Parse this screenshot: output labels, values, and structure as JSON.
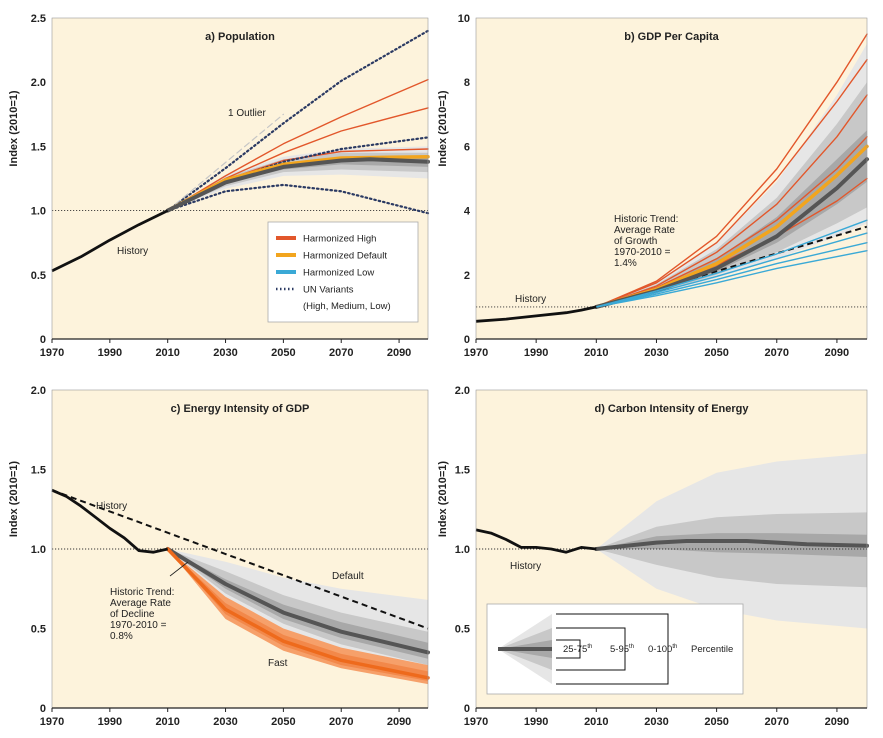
{
  "colors": {
    "panel_bg": "#fdf3dc",
    "high": "#e2572b",
    "default": "#f2a51e",
    "low": "#3aa9d6",
    "un": "#2b3a63",
    "history": "#111111",
    "median": "#555555",
    "band_outer": "#e6e6e6",
    "band_mid": "#c8c8c8",
    "band_inner": "#a8a8a8",
    "fast_band": "#f6a06a",
    "fast_line": "#ee6a1c"
  },
  "chart_data": [
    {
      "type": "line",
      "panel": "a",
      "title": "a) Population",
      "ylabel": "Index (2010=1)",
      "xlim": [
        1970,
        2100
      ],
      "ylim": [
        0,
        2.5
      ],
      "x_ticks": [
        "1970",
        "1990",
        "2010",
        "2030",
        "2050",
        "2070",
        "2090"
      ],
      "y_ticks": [
        "0",
        "0.5",
        "1.0",
        "1.5",
        "2.0",
        "2.5"
      ],
      "reference_line": 1.0,
      "history": {
        "label": "History",
        "x": [
          1970,
          1980,
          1990,
          2000,
          2010
        ],
        "y": [
          0.53,
          0.64,
          0.77,
          0.89,
          1.0
        ]
      },
      "annotations": [
        {
          "text": "1 Outlier",
          "x": 2032,
          "y": 1.72
        }
      ],
      "legend": [
        "Harmonized High",
        "Harmonized Default",
        "Harmonized Low",
        "UN Variants",
        "(High, Medium, Low)"
      ],
      "series": [
        {
          "name": "Harmonized High",
          "group": "high",
          "x": [
            2010,
            2030,
            2050,
            2070,
            2100
          ],
          "y": [
            1.0,
            1.27,
            1.52,
            1.73,
            2.02
          ]
        },
        {
          "group": "high",
          "x": [
            2010,
            2030,
            2050,
            2070,
            2100
          ],
          "y": [
            1.0,
            1.25,
            1.45,
            1.62,
            1.8
          ]
        },
        {
          "group": "high",
          "x": [
            2010,
            2030,
            2050,
            2070,
            2100
          ],
          "y": [
            1.0,
            1.24,
            1.39,
            1.46,
            1.48
          ]
        },
        {
          "name": "UN Variants",
          "group": "un",
          "x": [
            2010,
            2030,
            2050,
            2070,
            2100
          ],
          "y": [
            1.0,
            1.33,
            1.68,
            2.01,
            2.4
          ]
        },
        {
          "group": "un",
          "x": [
            2010,
            2030,
            2050,
            2070,
            2100
          ],
          "y": [
            1.0,
            1.23,
            1.38,
            1.48,
            1.57
          ]
        },
        {
          "group": "un",
          "x": [
            2010,
            2030,
            2050,
            2070,
            2100
          ],
          "y": [
            1.0,
            1.15,
            1.2,
            1.15,
            0.98
          ]
        },
        {
          "group": "outlier",
          "x": [
            2010,
            2050
          ],
          "y": [
            1.0,
            1.75
          ]
        },
        {
          "name": "Harmonized Default",
          "group": "default",
          "x": [
            2010,
            2030,
            2050,
            2070,
            2100
          ],
          "y": [
            1.0,
            1.24,
            1.36,
            1.41,
            1.42
          ]
        },
        {
          "group": "median",
          "x": [
            2010,
            2030,
            2050,
            2070,
            2080,
            2100
          ],
          "y": [
            1.0,
            1.22,
            1.34,
            1.39,
            1.4,
            1.38
          ]
        }
      ],
      "bands": [
        {
          "level": "0-100",
          "x": [
            2010,
            2030,
            2050,
            2070,
            2100
          ],
          "low": [
            1.0,
            1.17,
            1.27,
            1.28,
            1.25
          ],
          "high": [
            1.0,
            1.28,
            1.42,
            1.48,
            1.5
          ]
        },
        {
          "level": "5-95",
          "x": [
            2010,
            2030,
            2050,
            2070,
            2100
          ],
          "low": [
            1.0,
            1.19,
            1.3,
            1.32,
            1.3
          ],
          "high": [
            1.0,
            1.26,
            1.4,
            1.45,
            1.45
          ]
        },
        {
          "level": "25-75",
          "x": [
            2010,
            2030,
            2050,
            2070,
            2100
          ],
          "low": [
            1.0,
            1.21,
            1.32,
            1.36,
            1.34
          ],
          "high": [
            1.0,
            1.24,
            1.37,
            1.42,
            1.42
          ]
        }
      ]
    },
    {
      "type": "line",
      "panel": "b",
      "title": "b) GDP Per Capita",
      "ylabel": "Index (2010=1)",
      "xlim": [
        1970,
        2100
      ],
      "ylim": [
        0,
        10
      ],
      "x_ticks": [
        "1970",
        "1990",
        "2010",
        "2030",
        "2050",
        "2070",
        "2090"
      ],
      "y_ticks": [
        "0",
        "2",
        "4",
        "6",
        "8",
        "10"
      ],
      "reference_line": 1.0,
      "history": {
        "label": "History",
        "x": [
          1970,
          1980,
          1990,
          2000,
          2005,
          2010
        ],
        "y": [
          0.55,
          0.62,
          0.72,
          0.82,
          0.9,
          1.0
        ]
      },
      "annotations": [
        {
          "text": "Historic Trend: Average Rate of Growth 1970-2010 = 1.4%",
          "lines": [
            "Historic Trend:",
            "Average Rate",
            "of Growth",
            "1970-2010 =",
            "1.4%"
          ]
        }
      ],
      "trend": {
        "x": [
          2010,
          2100
        ],
        "y": [
          1.0,
          3.5
        ]
      },
      "series": [
        {
          "group": "high",
          "x": [
            2010,
            2030,
            2050,
            2070,
            2090,
            2100
          ],
          "y": [
            1.0,
            1.8,
            3.2,
            5.3,
            8.0,
            9.5
          ]
        },
        {
          "group": "high",
          "x": [
            2010,
            2030,
            2050,
            2070,
            2090,
            2100
          ],
          "y": [
            1.0,
            1.75,
            3.0,
            5.0,
            7.4,
            8.7
          ]
        },
        {
          "group": "high",
          "x": [
            2010,
            2030,
            2050,
            2070,
            2090,
            2100
          ],
          "y": [
            1.0,
            1.65,
            2.7,
            4.2,
            6.3,
            7.6
          ]
        },
        {
          "group": "high",
          "x": [
            2010,
            2030,
            2050,
            2070,
            2090,
            2100
          ],
          "y": [
            1.0,
            1.6,
            2.5,
            3.7,
            5.3,
            6.3
          ]
        },
        {
          "group": "high",
          "x": [
            2010,
            2030,
            2050,
            2070,
            2090,
            2100
          ],
          "y": [
            1.0,
            1.55,
            2.3,
            3.2,
            4.3,
            5.0
          ]
        },
        {
          "group": "default",
          "x": [
            2010,
            2030,
            2050,
            2070,
            2090,
            2100
          ],
          "y": [
            1.0,
            1.55,
            2.35,
            3.5,
            5.1,
            6.0
          ]
        },
        {
          "group": "median",
          "x": [
            2010,
            2030,
            2050,
            2070,
            2090,
            2100
          ],
          "y": [
            1.0,
            1.5,
            2.2,
            3.2,
            4.7,
            5.6
          ]
        },
        {
          "group": "low",
          "x": [
            2010,
            2030,
            2050,
            2070,
            2100
          ],
          "y": [
            1.0,
            1.5,
            2.05,
            2.65,
            3.7
          ]
        },
        {
          "group": "low",
          "x": [
            2010,
            2030,
            2050,
            2070,
            2100
          ],
          "y": [
            1.0,
            1.45,
            1.95,
            2.5,
            3.3
          ]
        },
        {
          "group": "low",
          "x": [
            2010,
            2030,
            2050,
            2070,
            2100
          ],
          "y": [
            1.0,
            1.4,
            1.85,
            2.35,
            3.0
          ]
        },
        {
          "group": "low",
          "x": [
            2010,
            2030,
            2050,
            2070,
            2100
          ],
          "y": [
            1.0,
            1.35,
            1.75,
            2.2,
            2.75
          ]
        }
      ],
      "bands": [
        {
          "level": "0-100",
          "x": [
            2010,
            2030,
            2050,
            2070,
            2090,
            2100
          ],
          "low": [
            1.0,
            1.4,
            1.9,
            2.5,
            3.2,
            3.6
          ],
          "high": [
            1.0,
            1.8,
            3.0,
            4.9,
            7.6,
            9.2
          ]
        },
        {
          "level": "5-95",
          "x": [
            2010,
            2030,
            2050,
            2070,
            2090,
            2100
          ],
          "low": [
            1.0,
            1.42,
            2.0,
            2.7,
            3.6,
            4.1
          ],
          "high": [
            1.0,
            1.7,
            2.8,
            4.4,
            6.7,
            8.0
          ]
        },
        {
          "level": "25-75",
          "x": [
            2010,
            2030,
            2050,
            2070,
            2090,
            2100
          ],
          "low": [
            1.0,
            1.45,
            2.1,
            3.0,
            4.2,
            4.9
          ],
          "high": [
            1.0,
            1.6,
            2.5,
            3.8,
            5.6,
            6.5
          ]
        }
      ],
      "labels": {
        "history": "History"
      }
    },
    {
      "type": "line",
      "panel": "c",
      "title": "c) Energy Intensity of GDP",
      "ylabel": "Index (2010=1)",
      "xlim": [
        1970,
        2100
      ],
      "ylim": [
        0,
        2.0
      ],
      "x_ticks": [
        "1970",
        "1990",
        "2010",
        "2030",
        "2050",
        "2070",
        "2090"
      ],
      "y_ticks": [
        "0",
        "0.5",
        "1.0",
        "1.5",
        "2.0"
      ],
      "reference_line": 1.0,
      "history": {
        "label": "History",
        "x": [
          1970,
          1975,
          1980,
          1985,
          1990,
          1995,
          2000,
          2005,
          2010
        ],
        "y": [
          1.37,
          1.33,
          1.27,
          1.2,
          1.13,
          1.07,
          0.99,
          0.98,
          1.0
        ]
      },
      "trend": {
        "x": [
          1970,
          2100
        ],
        "y": [
          1.37,
          0.5
        ]
      },
      "annotations": [
        {
          "text": "Historic Trend: Average Rate of Decline 1970-2010 = 0.8%",
          "lines": [
            "Historic Trend:",
            "Average Rate",
            "of Decline",
            "1970-2010 =",
            "0.8%"
          ]
        },
        {
          "text": "Default"
        },
        {
          "text": "Fast"
        }
      ],
      "series": [
        {
          "name": "Default",
          "group": "median",
          "x": [
            2010,
            2030,
            2050,
            2070,
            2100
          ],
          "y": [
            1.0,
            0.78,
            0.6,
            0.48,
            0.35
          ]
        },
        {
          "name": "Fast",
          "group": "fast",
          "x": [
            2010,
            2030,
            2050,
            2070,
            2100
          ],
          "y": [
            1.0,
            0.62,
            0.42,
            0.3,
            0.19
          ]
        }
      ],
      "bands": [
        {
          "level": "0-100",
          "x": [
            2010,
            2030,
            2050,
            2070,
            2100
          ],
          "low": [
            1.0,
            0.7,
            0.5,
            0.37,
            0.24
          ],
          "high": [
            1.0,
            0.92,
            0.82,
            0.75,
            0.68
          ]
        },
        {
          "level": "5-95",
          "x": [
            2010,
            2030,
            2050,
            2070,
            2100
          ],
          "low": [
            1.0,
            0.72,
            0.53,
            0.4,
            0.27
          ],
          "high": [
            1.0,
            0.86,
            0.71,
            0.6,
            0.48
          ]
        },
        {
          "level": "25-75",
          "x": [
            2010,
            2030,
            2050,
            2070,
            2100
          ],
          "low": [
            1.0,
            0.75,
            0.56,
            0.44,
            0.31
          ],
          "high": [
            1.0,
            0.81,
            0.65,
            0.54,
            0.41
          ]
        },
        {
          "level": "fast-outer",
          "x": [
            2010,
            2030,
            2050,
            2070,
            2100
          ],
          "low": [
            1.0,
            0.56,
            0.36,
            0.25,
            0.15
          ],
          "high": [
            1.0,
            0.7,
            0.5,
            0.38,
            0.27
          ]
        },
        {
          "level": "fast-inner",
          "x": [
            2010,
            2030,
            2050,
            2070,
            2100
          ],
          "low": [
            1.0,
            0.59,
            0.39,
            0.27,
            0.17
          ],
          "high": [
            1.0,
            0.66,
            0.46,
            0.34,
            0.23
          ]
        }
      ]
    },
    {
      "type": "line",
      "panel": "d",
      "title": "d) Carbon Intensity of Energy",
      "ylabel": "Index (2010=1)",
      "xlim": [
        1970,
        2100
      ],
      "ylim": [
        0,
        2.0
      ],
      "x_ticks": [
        "1970",
        "1990",
        "2010",
        "2030",
        "2050",
        "2070",
        "2090"
      ],
      "y_ticks": [
        "0",
        "0.5",
        "1.0",
        "1.5",
        "2.0"
      ],
      "reference_line": 1.0,
      "history": {
        "label": "History",
        "x": [
          1970,
          1975,
          1980,
          1985,
          1990,
          1995,
          2000,
          2005,
          2010
        ],
        "y": [
          1.12,
          1.1,
          1.06,
          1.01,
          1.01,
          1.0,
          0.98,
          1.01,
          1.0
        ]
      },
      "series": [
        {
          "group": "median",
          "x": [
            2010,
            2030,
            2040,
            2060,
            2080,
            2100
          ],
          "y": [
            1.0,
            1.04,
            1.05,
            1.05,
            1.03,
            1.02
          ]
        }
      ],
      "bands": [
        {
          "level": "0-100",
          "x": [
            2010,
            2030,
            2050,
            2070,
            2100
          ],
          "low": [
            1.0,
            0.75,
            0.62,
            0.55,
            0.5
          ],
          "high": [
            1.0,
            1.3,
            1.48,
            1.55,
            1.6
          ]
        },
        {
          "level": "5-95",
          "x": [
            2010,
            2030,
            2050,
            2070,
            2100
          ],
          "low": [
            1.0,
            0.9,
            0.82,
            0.78,
            0.76
          ],
          "high": [
            1.0,
            1.14,
            1.2,
            1.22,
            1.23
          ]
        },
        {
          "level": "25-75",
          "x": [
            2010,
            2030,
            2050,
            2070,
            2100
          ],
          "low": [
            1.0,
            1.0,
            0.98,
            0.97,
            0.95
          ],
          "high": [
            1.0,
            1.08,
            1.1,
            1.1,
            1.09
          ]
        }
      ],
      "percentile_legend": {
        "labels": [
          "25-75",
          "5-95",
          "0-100"
        ],
        "suffix": "th",
        "word": "Percentile"
      }
    }
  ]
}
